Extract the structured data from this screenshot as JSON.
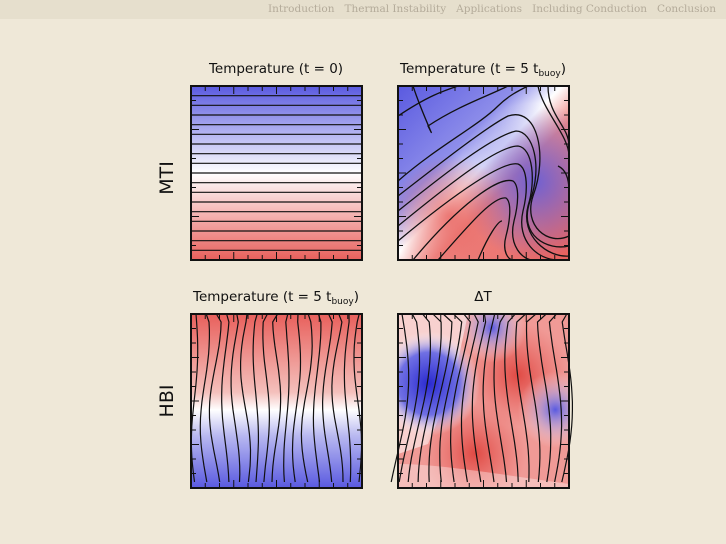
{
  "nav": {
    "items": [
      "Introduction",
      "Thermal Instability",
      "Applications",
      "Including Conduction",
      "Conclusion"
    ]
  },
  "panels": {
    "mti_t0": {
      "title_main": "Temperature (t = 0)",
      "title_sub": "",
      "title_close": ""
    },
    "mti_t5": {
      "title_main": "Temperature (t = 5 t",
      "title_sub": "buoy",
      "title_close": ")"
    },
    "hbi_t5": {
      "title_main": "Temperature (t = 5 t",
      "title_sub": "buoy",
      "title_close": ")"
    },
    "hbi_dT": {
      "title_main": "ΔT",
      "title_sub": "",
      "title_close": ""
    }
  },
  "row_labels": {
    "top": "MTI",
    "bottom": "HBI"
  },
  "colors": {
    "hot": "#e8605c",
    "cold": "#5a5ae0",
    "neutral": "#ffffff",
    "frame": "#111111",
    "background": "#efe8d8"
  }
}
